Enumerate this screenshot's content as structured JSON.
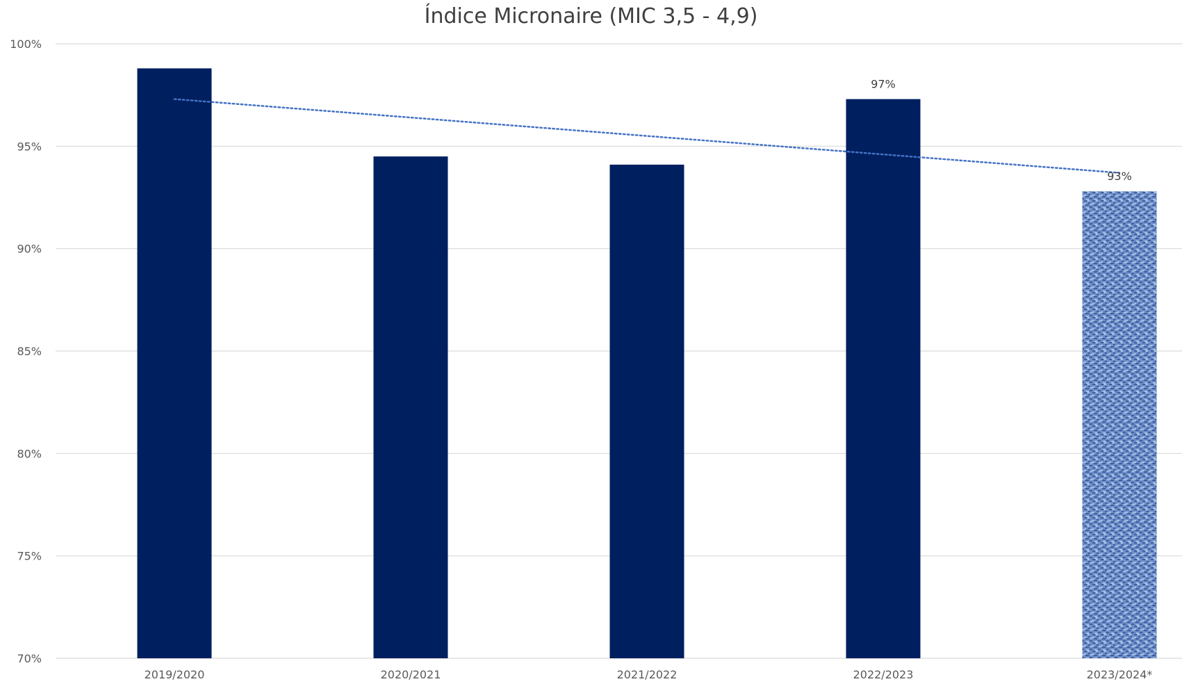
{
  "chart_data": {
    "type": "bar",
    "title": "Índice Micronaire (MIC 3,5 - 4,9)",
    "xlabel": "",
    "ylabel": "",
    "categories": [
      "2019/2020",
      "2020/2021",
      "2021/2022",
      "2022/2023",
      "2023/2024*"
    ],
    "series": [
      {
        "values": [
          98.8,
          94.5,
          94.1,
          97.3,
          92.8
        ],
        "data_labels": [
          "",
          "",
          "",
          "97%",
          "93%"
        ]
      }
    ],
    "trendline": {
      "type": "linear",
      "style": "dotted",
      "start": 97.3,
      "end": 93.7
    },
    "ylim": [
      70,
      100
    ],
    "yticks": [
      {
        "value": 70,
        "label": "70%"
      },
      {
        "value": 75,
        "label": "75%"
      },
      {
        "value": 80,
        "label": "80%"
      },
      {
        "value": 85,
        "label": "85%"
      },
      {
        "value": 90,
        "label": "90%"
      },
      {
        "value": 95,
        "label": "95%"
      },
      {
        "value": 100,
        "label": "100%"
      }
    ],
    "grid": true,
    "legend": "none",
    "colors": {
      "bar": "#001f5f",
      "bar_textured_base": "#6f8fc9",
      "bar_textured_dark": "#3d5e9e",
      "bar_textured_light": "#a9c0e6",
      "trendline": "#4472c4",
      "grid": "#d9d9d9",
      "tick_text": "#595959",
      "title_text": "#404040"
    },
    "textured_categories": [
      "2023/2024*"
    ]
  }
}
